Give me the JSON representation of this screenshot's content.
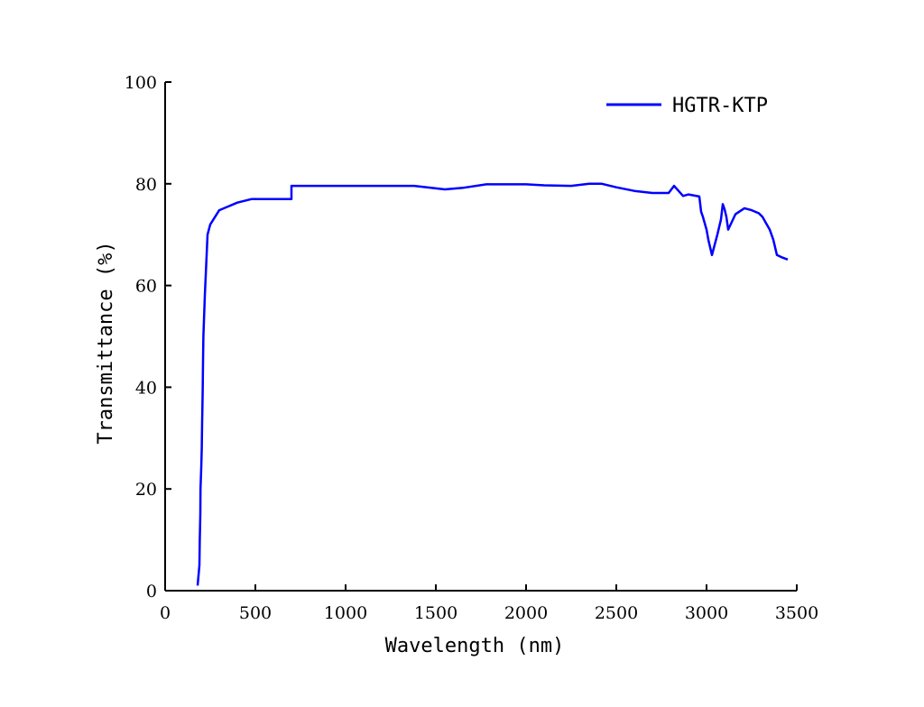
{
  "chart_data": {
    "type": "line",
    "xlabel": "Wavelength (nm)",
    "ylabel": "Transmittance (%)",
    "xlim": [
      0,
      3500
    ],
    "ylim": [
      0,
      100
    ],
    "x_ticks": [
      0,
      500,
      1000,
      1500,
      2000,
      2500,
      3000,
      3500
    ],
    "y_ticks": [
      0,
      20,
      40,
      60,
      80,
      100
    ],
    "x_tick_labels": [
      "0",
      "500",
      "1000",
      "1500",
      "2000",
      "2500",
      "3000",
      "3500"
    ],
    "y_tick_labels": [
      "0",
      "20",
      "40",
      "60",
      "80",
      "100"
    ],
    "grid": false,
    "legend_position": "top-right",
    "series": [
      {
        "name": "HGTR-KTP",
        "color": "#0000ff",
        "x": [
          180,
          190,
          192,
          195,
          196,
          200,
          203,
          205,
          208,
          210,
          212,
          215,
          220,
          225,
          230,
          235,
          250,
          300,
          400,
          480,
          600,
          700,
          700,
          1000,
          1380,
          1550,
          1650,
          1780,
          2000,
          2100,
          2250,
          2350,
          2420,
          2500,
          2600,
          2700,
          2790,
          2820,
          2870,
          2900,
          2960,
          2970,
          2980,
          3000,
          3010,
          3030,
          3060,
          3080,
          3090,
          3100,
          3110,
          3120,
          3140,
          3160,
          3210,
          3250,
          3290,
          3310,
          3350,
          3370,
          3390,
          3420,
          3450
        ],
        "y": [
          1,
          5,
          10,
          15,
          20,
          24,
          28,
          33,
          39,
          45,
          50,
          53,
          58,
          62,
          66,
          70,
          72,
          74.8,
          76.3,
          77,
          77,
          77,
          79.6,
          79.6,
          79.6,
          78.9,
          79.2,
          79.9,
          79.9,
          79.7,
          79.6,
          80,
          80,
          79.3,
          78.6,
          78.2,
          78.2,
          79.6,
          77.6,
          77.9,
          77.5,
          74.5,
          73.5,
          71,
          69,
          66,
          70,
          73,
          76,
          75,
          73.5,
          71,
          72.5,
          74,
          75.2,
          74.8,
          74.2,
          73.5,
          71,
          69,
          66,
          65.5,
          65.1
        ]
      }
    ]
  }
}
